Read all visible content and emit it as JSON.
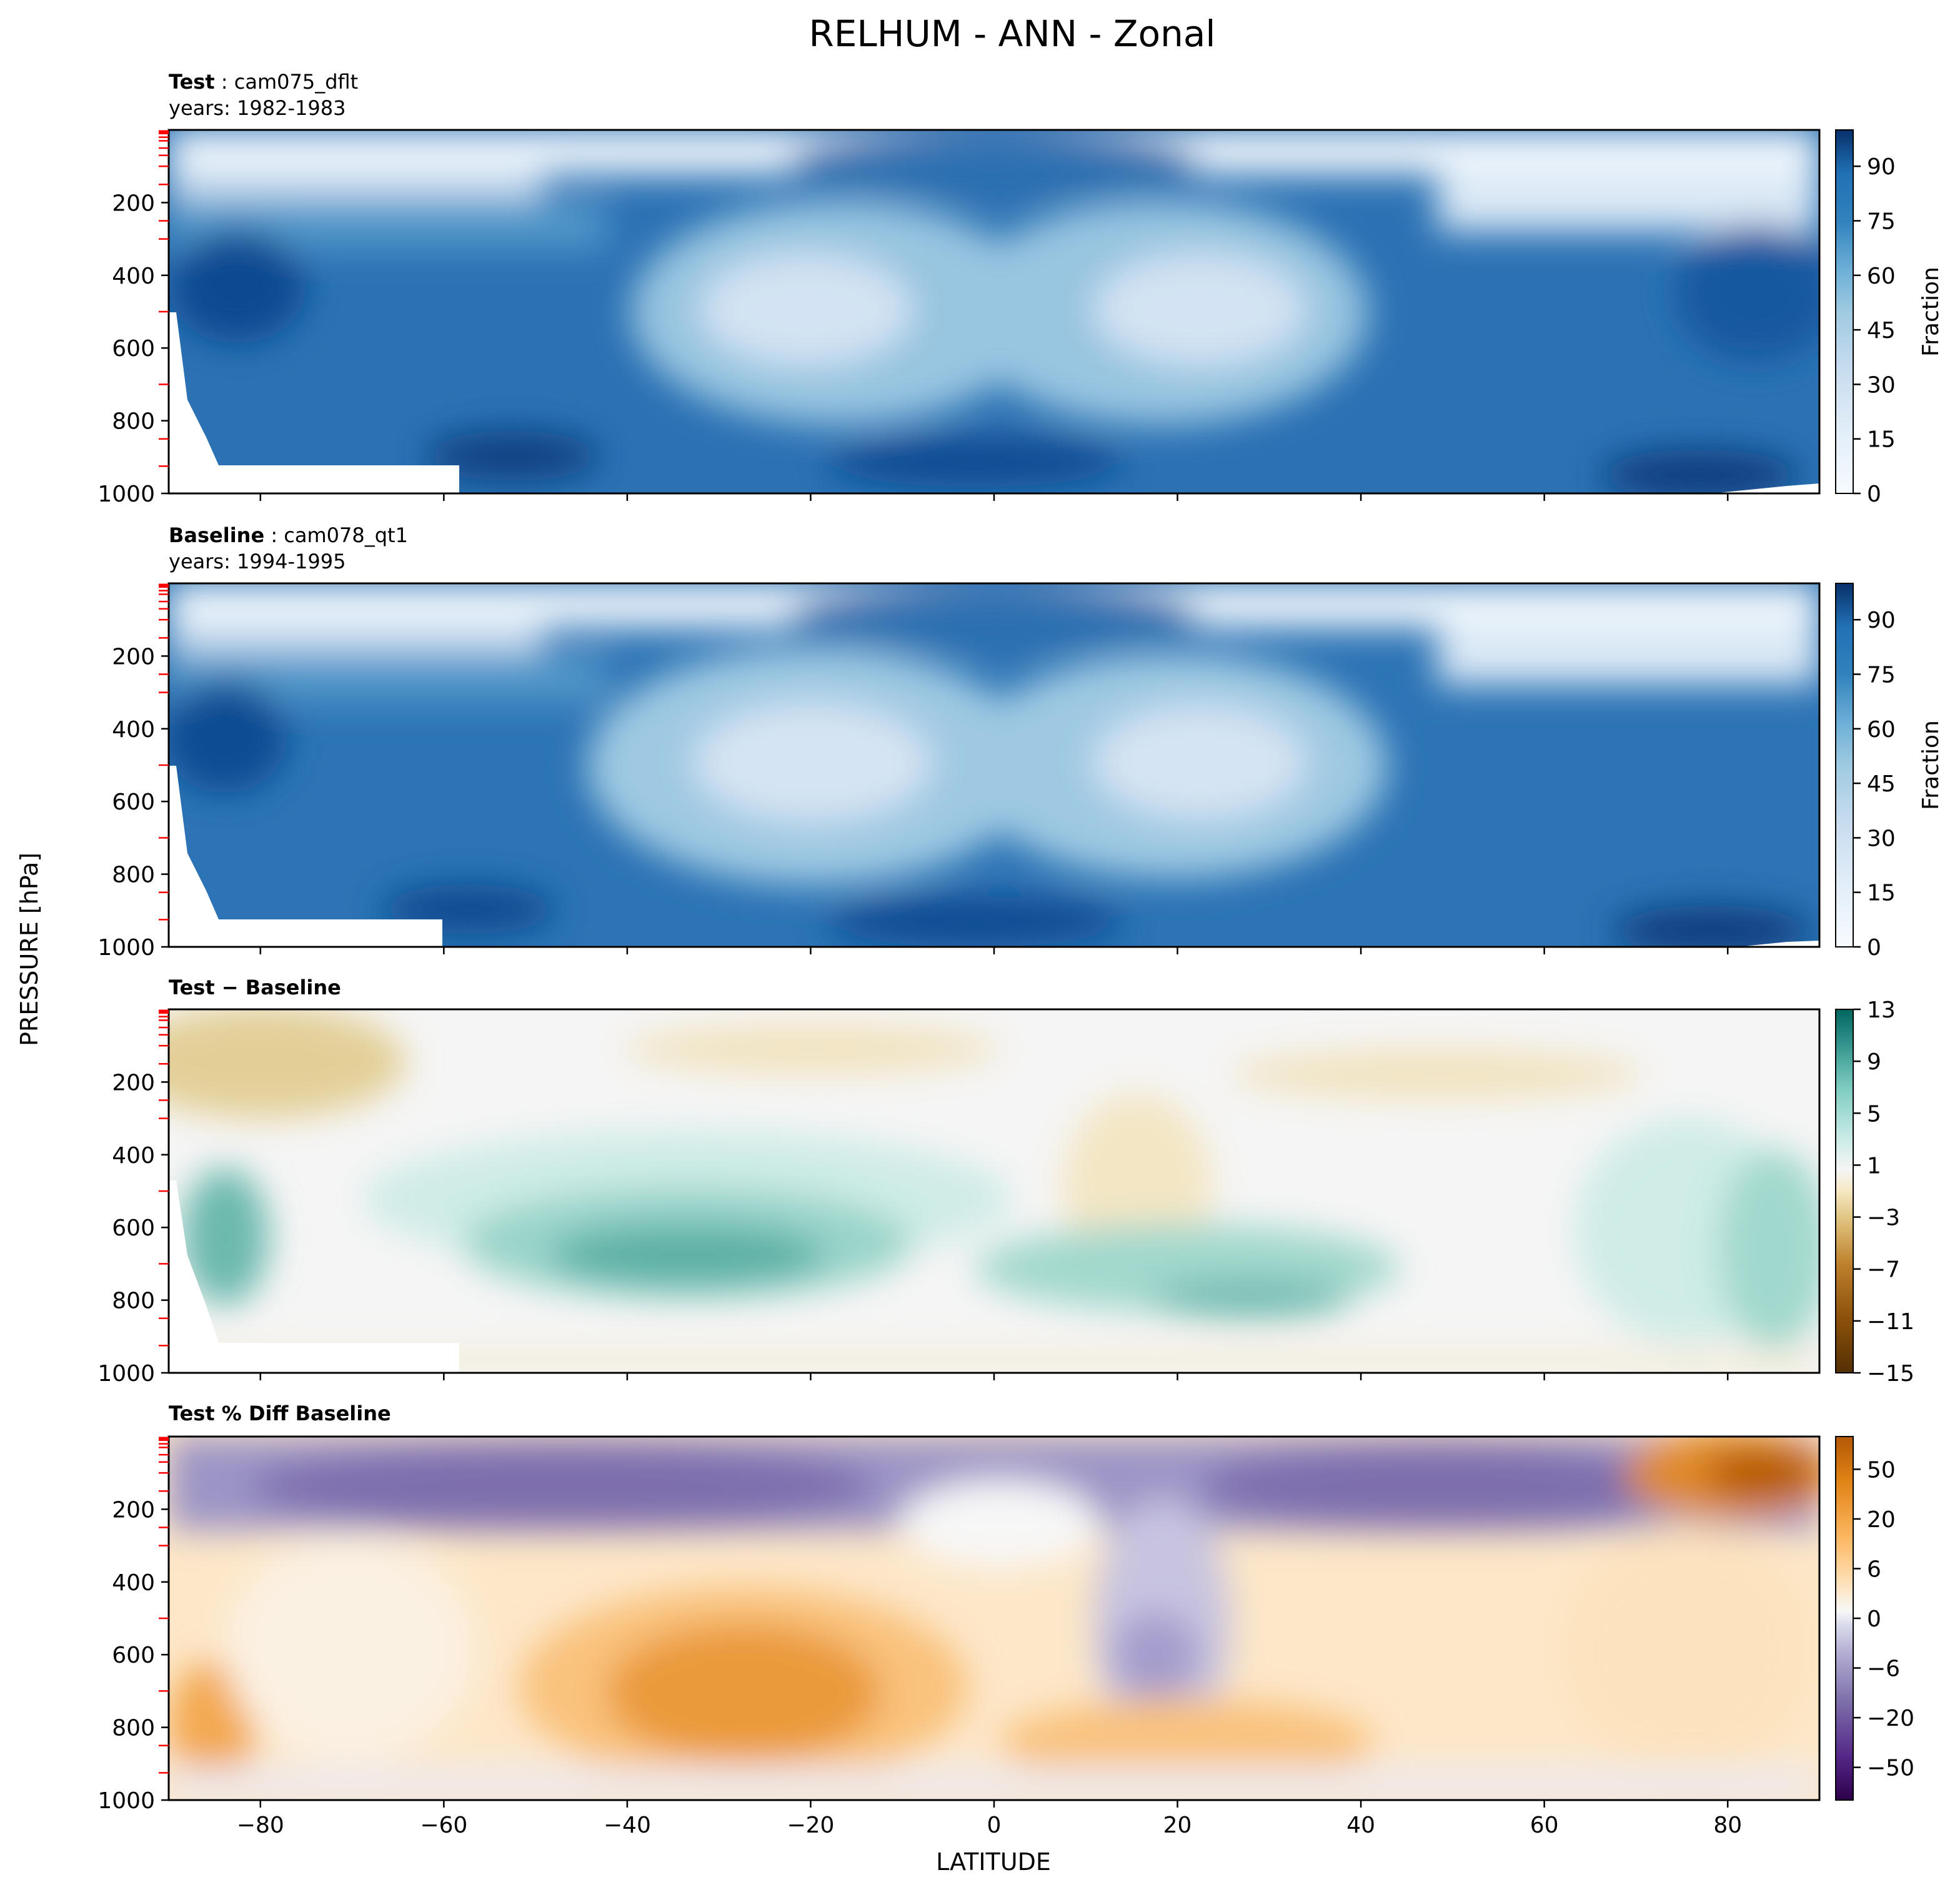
{
  "figure": {
    "title": "RELHUM - ANN - Zonal",
    "xlabel": "LATITUDE",
    "ylabel": "PRESSURE [hPa]"
  },
  "chart_data": [
    {
      "type": "heatmap",
      "panel": "test",
      "title_bold": "Test",
      "title_rest": " : cam075_dflt",
      "subtitle": "years: 1982-1983",
      "xlim": [
        -90,
        90
      ],
      "ylim": [
        1000,
        0
      ],
      "x_ticks": [
        -80,
        -60,
        -40,
        -20,
        0,
        20,
        40,
        60,
        80
      ],
      "y_ticks": [
        200,
        400,
        600,
        800,
        1000
      ],
      "colorbar": {
        "label": "Fraction",
        "ticks": [
          "0",
          "15",
          "30",
          "45",
          "60",
          "75",
          "90"
        ],
        "min": 0,
        "max": 100,
        "scheme": "blues"
      }
    },
    {
      "type": "heatmap",
      "panel": "baseline",
      "title_bold": "Baseline",
      "title_rest": " : cam078_qt1",
      "subtitle": "years: 1994-1995",
      "xlim": [
        -90,
        90
      ],
      "ylim": [
        1000,
        0
      ],
      "x_ticks": [
        -80,
        -60,
        -40,
        -20,
        0,
        20,
        40,
        60,
        80
      ],
      "y_ticks": [
        200,
        400,
        600,
        800,
        1000
      ],
      "colorbar": {
        "label": "Fraction",
        "ticks": [
          "0",
          "15",
          "30",
          "45",
          "60",
          "75",
          "90"
        ],
        "min": 0,
        "max": 100,
        "scheme": "blues"
      }
    },
    {
      "type": "heatmap",
      "panel": "diff",
      "title_bold": "Test − Baseline",
      "title_rest": "",
      "subtitle": "",
      "xlim": [
        -90,
        90
      ],
      "ylim": [
        1000,
        0
      ],
      "x_ticks": [
        -80,
        -60,
        -40,
        -20,
        0,
        20,
        40,
        60,
        80
      ],
      "y_ticks": [
        200,
        400,
        600,
        800,
        1000
      ],
      "colorbar": {
        "label": "",
        "ticks": [
          "13",
          "9",
          "5",
          "1",
          "−3",
          "−7",
          "−11",
          "−15"
        ],
        "min": -15,
        "max": 13,
        "scheme": "brbg"
      }
    },
    {
      "type": "heatmap",
      "panel": "pctdiff",
      "title_bold": "Test % Diff Baseline",
      "title_rest": "",
      "subtitle": "",
      "xlim": [
        -90,
        90
      ],
      "ylim": [
        1000,
        0
      ],
      "x_ticks": [
        -80,
        -60,
        -40,
        -20,
        0,
        20,
        40,
        60,
        80
      ],
      "y_ticks": [
        200,
        400,
        600,
        800,
        1000
      ],
      "colorbar": {
        "label": "",
        "ticks": [
          "50",
          "20",
          "6",
          "0",
          "−6",
          "−20",
          "−50"
        ],
        "min": -100,
        "max": 100,
        "scheme": "puor"
      }
    }
  ],
  "colors": {
    "blues_dark": "#08306b",
    "blues_light": "#f7fbff",
    "brbg_pos": "#01665e",
    "brbg_neg": "#8c510a",
    "puor_pos": "#b35806",
    "puor_neg": "#542788",
    "minor_tick": "#ff0000"
  }
}
